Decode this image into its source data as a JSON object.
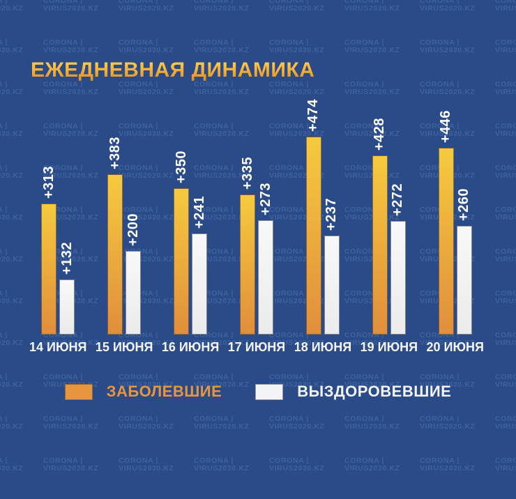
{
  "title": "ЕЖЕДНЕВНАЯ ДИНАМИКА",
  "watermark": {
    "line1": "CORONA |",
    "line2": "VIRUS2020.KZ"
  },
  "legend": {
    "items": [
      {
        "label": "ЗАБОЛЕВШИЕ",
        "color": "#e8963e"
      },
      {
        "label": "ВЫЗДОРОВЕВШИЕ",
        "color": "#f3f4f8"
      }
    ]
  },
  "chart_data": {
    "type": "bar",
    "title": "ЕЖЕДНЕВНАЯ ДИНАМИКА",
    "categories": [
      "14 ИЮНЯ",
      "15 ИЮНЯ",
      "16 ИЮНЯ",
      "17 ИЮНЯ",
      "18 ИЮНЯ",
      "19 ИЮНЯ",
      "20 ИЮНЯ"
    ],
    "series": [
      {
        "name": "ЗАБОЛЕВШИЕ",
        "values": [
          313,
          383,
          350,
          335,
          474,
          428,
          446
        ],
        "labels": [
          "+313",
          "+383",
          "+350",
          "+335",
          "+474",
          "+428",
          "+446"
        ],
        "color_top": "#f6ca3e",
        "color_bottom": "#e18e3b"
      },
      {
        "name": "ВЫЗДОРОВЕВШИЕ",
        "values": [
          132,
          200,
          241,
          273,
          237,
          272,
          260
        ],
        "labels": [
          "+132",
          "+200",
          "+241",
          "+273",
          "+237",
          "+272",
          "+260"
        ],
        "color_top": "#f8f8f8",
        "color_bottom": "#ebebeb"
      }
    ],
    "ylim": [
      0,
      500
    ],
    "grid": false,
    "legend_position": "bottom",
    "value_label_rotation": -90
  },
  "colors": {
    "background": "#2a4b87",
    "title_gradient_top": "#ffd353",
    "title_gradient_bottom": "#e08a2c",
    "value_label": "#ffffff",
    "date_label": "#f3f5f9",
    "watermark_text": "#5a80c0"
  }
}
